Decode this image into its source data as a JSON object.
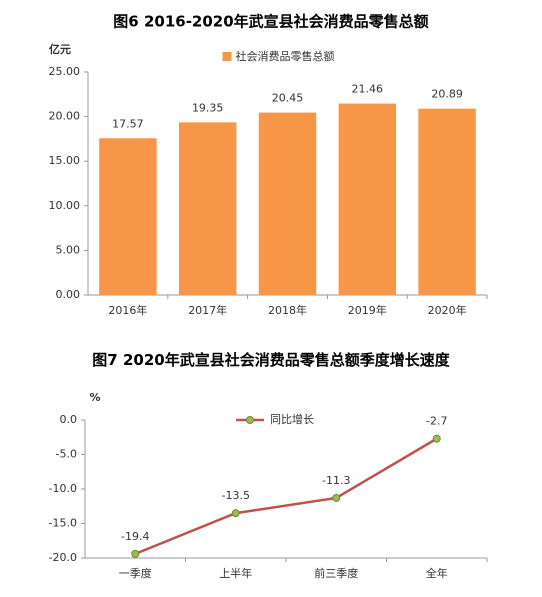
{
  "chart_data": [
    {
      "type": "bar",
      "title": "图6  2016-2020年武宣县社会消费品零售总额",
      "y_label": "亿元",
      "categories": [
        "2016年",
        "2017年",
        "2018年",
        "2019年",
        "2020年"
      ],
      "series": [
        {
          "name": "社会消费品零售总额",
          "color": "#f79646",
          "values": [
            17.57,
            19.35,
            20.45,
            21.46,
            20.89
          ]
        }
      ],
      "ylim": [
        0,
        25
      ],
      "yticks": [
        {
          "value": 0,
          "label": "0.00"
        },
        {
          "value": 5,
          "label": "5.00"
        },
        {
          "value": 10,
          "label": "10.00"
        },
        {
          "value": 15,
          "label": "15.00"
        },
        {
          "value": 20,
          "label": "20.00"
        },
        {
          "value": 25,
          "label": "25.00"
        }
      ],
      "grid": false,
      "legend": "top"
    },
    {
      "type": "line",
      "title": "图7  2020年武宣县社会消费品零售总额季度增长速度",
      "y_label": "%",
      "categories": [
        "一季度",
        "上半年",
        "前三季度",
        "全年"
      ],
      "series": [
        {
          "name": "同比增长",
          "color": "#c0504d",
          "marker_color": "#9bbb59",
          "values": [
            -19.4,
            -13.5,
            -11.3,
            -2.7
          ]
        }
      ],
      "ylim": [
        -20,
        0
      ],
      "yticks": [
        {
          "value": 0,
          "label": "0.0"
        },
        {
          "value": -5,
          "label": "-5.0"
        },
        {
          "value": -10,
          "label": "-10.0"
        },
        {
          "value": -15,
          "label": "-15.0"
        },
        {
          "value": -20,
          "label": "-20.0"
        }
      ],
      "grid": false,
      "legend": "top"
    }
  ]
}
